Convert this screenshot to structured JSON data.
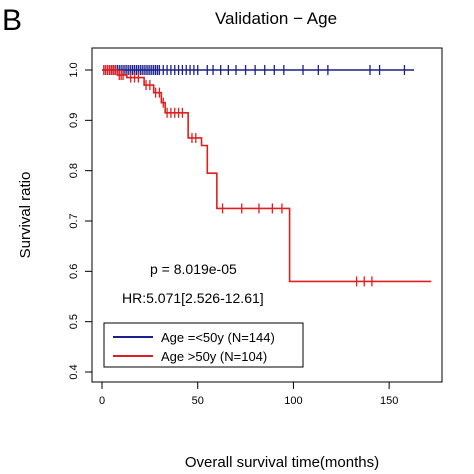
{
  "panel_letter": "B",
  "chart_data": {
    "type": "line",
    "subtype": "kaplan-meier",
    "title": "Validation − Age",
    "xlabel": "Overall survival time(months)",
    "ylabel": "Survival ratio",
    "xlim": [
      0,
      175
    ],
    "ylim": [
      0.4,
      1.0
    ],
    "xticks": [
      0,
      50,
      100,
      150
    ],
    "yticks": [
      0.4,
      0.5,
      0.6,
      0.7,
      0.8,
      0.9,
      1.0
    ],
    "xtick_labels": [
      "0",
      "50",
      "100",
      "150"
    ],
    "ytick_labels": [
      "0.4",
      "0.5",
      "0.6",
      "0.7",
      "0.8",
      "0.9",
      "1.0"
    ],
    "annotations": [
      "p = 8.019e-05",
      "HR:5.071[2.526-12.61]"
    ],
    "legend_position": "bottom-left",
    "grid": false,
    "series": [
      {
        "name": "Age =<50y (N=144)",
        "color": "#1a1f8c",
        "steps": [
          [
            0,
            1.0
          ],
          [
            163,
            1.0
          ]
        ],
        "censors": [
          1,
          2,
          3,
          4,
          5,
          6,
          7,
          8,
          9,
          10,
          11,
          12,
          13,
          14,
          15,
          16,
          17,
          18,
          19,
          20,
          21,
          22,
          23,
          24,
          25,
          26,
          27,
          28,
          29,
          30,
          32,
          34,
          36,
          38,
          40,
          42,
          44,
          46,
          48,
          50,
          55,
          58,
          62,
          66,
          70,
          75,
          80,
          85,
          90,
          95,
          105,
          113,
          118,
          140,
          145,
          158
        ]
      },
      {
        "name": "Age >50y (N=104)",
        "color": "#e01e1e",
        "steps": [
          [
            0,
            1.0
          ],
          [
            8,
            0.99
          ],
          [
            13,
            0.985
          ],
          [
            22,
            0.97
          ],
          [
            27,
            0.955
          ],
          [
            31,
            0.935
          ],
          [
            33,
            0.915
          ],
          [
            45,
            0.865
          ],
          [
            52,
            0.85
          ],
          [
            55,
            0.795
          ],
          [
            60,
            0.725
          ],
          [
            98,
            0.725
          ],
          [
            98,
            0.58
          ],
          [
            172,
            0.58
          ]
        ],
        "censors": [
          [
            1,
            1.0
          ],
          [
            2,
            1.0
          ],
          [
            3,
            1.0
          ],
          [
            4,
            1.0
          ],
          [
            5,
            1.0
          ],
          [
            6,
            1.0
          ],
          [
            7,
            1.0
          ],
          [
            9,
            0.99
          ],
          [
            10,
            0.99
          ],
          [
            11,
            0.99
          ],
          [
            15,
            0.985
          ],
          [
            17,
            0.985
          ],
          [
            19,
            0.985
          ],
          [
            23,
            0.97
          ],
          [
            25,
            0.97
          ],
          [
            28,
            0.955
          ],
          [
            30,
            0.955
          ],
          [
            32,
            0.935
          ],
          [
            34,
            0.915
          ],
          [
            36,
            0.915
          ],
          [
            38,
            0.915
          ],
          [
            40,
            0.915
          ],
          [
            42,
            0.915
          ],
          [
            47,
            0.865
          ],
          [
            49,
            0.865
          ],
          [
            63,
            0.725
          ],
          [
            73,
            0.725
          ],
          [
            82,
            0.725
          ],
          [
            89,
            0.725
          ],
          [
            94,
            0.725
          ],
          [
            133,
            0.58
          ],
          [
            137,
            0.58
          ],
          [
            141,
            0.58
          ]
        ]
      }
    ]
  }
}
